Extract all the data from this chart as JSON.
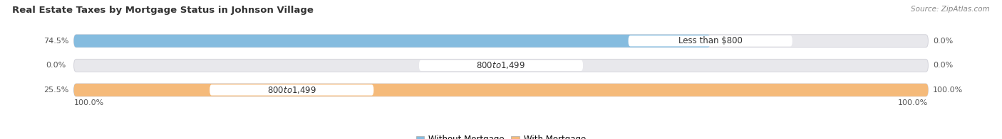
{
  "title": "Real Estate Taxes by Mortgage Status in Johnson Village",
  "source": "Source: ZipAtlas.com",
  "bars": [
    {
      "label": "Less than $800",
      "without_mortgage": 74.5,
      "with_mortgage": 0.0,
      "wm_label_pos": "inside_left",
      "wt_label_pos": "right_outside"
    },
    {
      "label": "$800 to $1,499",
      "without_mortgage": 0.0,
      "with_mortgage": 0.0,
      "wm_label_pos": "left_outside",
      "wt_label_pos": "right_outside"
    },
    {
      "label": "$800 to $1,499",
      "without_mortgage": 25.5,
      "with_mortgage": 100.0,
      "wm_label_pos": "left_outside",
      "wt_label_pos": "inside_right"
    }
  ],
  "bottom_left_label": "100.0%",
  "bottom_right_label": "100.0%",
  "color_without": "#85BCDF",
  "color_with": "#F5BA7A",
  "color_bar_bg": "#E8E8EC",
  "bar_bg_edge": "#D0D0D8",
  "title_fontsize": 9.5,
  "source_fontsize": 7.5,
  "legend_fontsize": 8.5,
  "bar_label_fontsize": 8,
  "category_fontsize": 8.5,
  "value_max": 100.0
}
